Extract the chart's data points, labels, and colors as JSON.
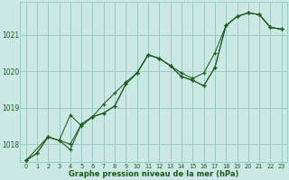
{
  "title": "Graphe pression niveau de la mer (hPa)",
  "bg_color": "#cce8e4",
  "grid_color": "#99ccc7",
  "line_color": "#1a5c1a",
  "xlim": [
    -0.5,
    23.5
  ],
  "ylim": [
    1017.5,
    1021.9
  ],
  "yticks": [
    1018,
    1019,
    1020,
    1021
  ],
  "xticks": [
    0,
    1,
    2,
    3,
    4,
    5,
    6,
    7,
    8,
    9,
    10,
    11,
    12,
    13,
    14,
    15,
    16,
    17,
    18,
    19,
    20,
    21,
    22,
    23
  ],
  "series1": {
    "x": [
      0,
      1,
      2,
      3,
      4,
      5,
      6,
      7,
      8,
      9,
      10,
      11,
      12,
      13,
      14,
      15,
      16,
      17,
      18,
      19,
      20,
      21,
      22,
      23
    ],
    "y": [
      1017.55,
      1017.75,
      1018.2,
      1018.1,
      1017.85,
      1018.55,
      1018.75,
      1018.85,
      1019.05,
      1019.65,
      1019.95,
      1020.45,
      1020.35,
      1020.15,
      1019.85,
      1019.75,
      1019.6,
      1020.1,
      1021.25,
      1021.5,
      1021.6,
      1021.55,
      1021.2,
      1021.15
    ]
  },
  "series2": {
    "x": [
      0,
      1,
      2,
      3,
      4,
      5,
      6,
      7,
      8,
      9,
      10,
      11,
      12,
      13,
      14,
      15,
      16,
      17,
      18,
      19,
      20,
      21,
      22,
      23
    ],
    "y": [
      1017.55,
      1017.75,
      1018.2,
      1018.1,
      1018.8,
      1018.5,
      1018.75,
      1019.1,
      1019.4,
      1019.7,
      1019.95,
      1020.45,
      1020.35,
      1020.15,
      1019.95,
      1019.8,
      1019.95,
      1020.5,
      1021.25,
      1021.5,
      1021.6,
      1021.55,
      1021.2,
      1021.15
    ]
  },
  "series3": {
    "x": [
      0,
      2,
      3,
      4,
      5,
      6,
      7,
      8,
      9,
      10,
      11,
      12,
      13,
      14,
      15,
      16,
      17,
      18,
      19,
      20,
      21,
      22,
      23
    ],
    "y": [
      1017.55,
      1018.2,
      1018.1,
      1018.0,
      1018.55,
      1018.75,
      1018.85,
      1019.05,
      1019.65,
      1019.95,
      1020.45,
      1020.35,
      1020.15,
      1019.85,
      1019.75,
      1019.6,
      1020.1,
      1021.25,
      1021.5,
      1021.6,
      1021.55,
      1021.2,
      1021.15
    ]
  }
}
